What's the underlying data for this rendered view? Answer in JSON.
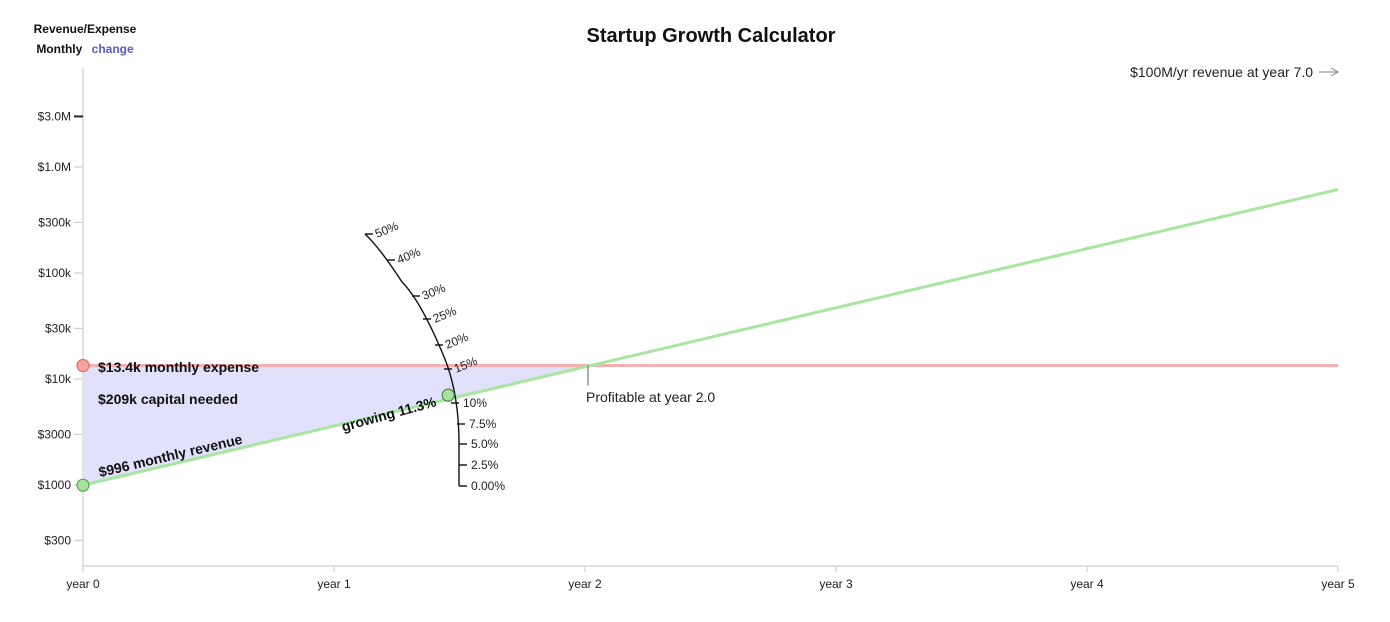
{
  "header": {
    "series_label": "Revenue/Expense",
    "period_label": "Monthly",
    "change_label": "change",
    "title": "Startup Growth Calculator"
  },
  "annotations": {
    "target": "$100M/yr revenue at year 7.0",
    "expense": "$13.4k monthly expense",
    "capital": "$209k capital needed",
    "revenue": "$996 monthly revenue",
    "growth": "growing 11.3%",
    "profitable": "Profitable at year 2.0"
  },
  "colors": {
    "revenue": "#a8e6a0",
    "expense": "#f5b1b1",
    "capital_fill": "#e1e1fb",
    "axis": "#cfcfcf"
  },
  "chart_data": {
    "type": "line",
    "title": "Startup Growth Calculator",
    "xlabel": "",
    "ylabel": "Revenue/Expense (Monthly)",
    "yscale": "log",
    "xlim": [
      0,
      5
    ],
    "x_ticks": [
      {
        "value": 0,
        "label": "year 0"
      },
      {
        "value": 1,
        "label": "year 1"
      },
      {
        "value": 2,
        "label": "year 2"
      },
      {
        "value": 3,
        "label": "year 3"
      },
      {
        "value": 4,
        "label": "year 4"
      },
      {
        "value": 5,
        "label": "year 5"
      }
    ],
    "y_ticks": [
      {
        "value": 300,
        "label": "$300"
      },
      {
        "value": 1000,
        "label": "$1000"
      },
      {
        "value": 3000,
        "label": "$3000"
      },
      {
        "value": 10000,
        "label": "$10k"
      },
      {
        "value": 30000,
        "label": "$30k"
      },
      {
        "value": 100000,
        "label": "$100k"
      },
      {
        "value": 300000,
        "label": "$300k"
      },
      {
        "value": 1000000,
        "label": "$1.0M"
      },
      {
        "value": 3000000,
        "label": "$3.0M"
      }
    ],
    "series": [
      {
        "name": "revenue",
        "start_value": 996,
        "monthly_growth_pct": 11.3
      },
      {
        "name": "expense",
        "value": 13400
      }
    ],
    "growth_dial": {
      "selected_pct": 11.3,
      "ticks": [
        {
          "value": 0,
          "label": "0.00%"
        },
        {
          "value": 2.5,
          "label": "2.5%"
        },
        {
          "value": 5,
          "label": "5.0%"
        },
        {
          "value": 7.5,
          "label": "7.5%"
        },
        {
          "value": 10,
          "label": "10%"
        },
        {
          "value": 15,
          "label": "15%"
        },
        {
          "value": 20,
          "label": "20%"
        },
        {
          "value": 25,
          "label": "25%"
        },
        {
          "value": 30,
          "label": "30%"
        },
        {
          "value": 40,
          "label": "40%"
        },
        {
          "value": 50,
          "label": "50%"
        }
      ]
    },
    "breakeven_year": 2.0,
    "capital_needed": 209000
  }
}
